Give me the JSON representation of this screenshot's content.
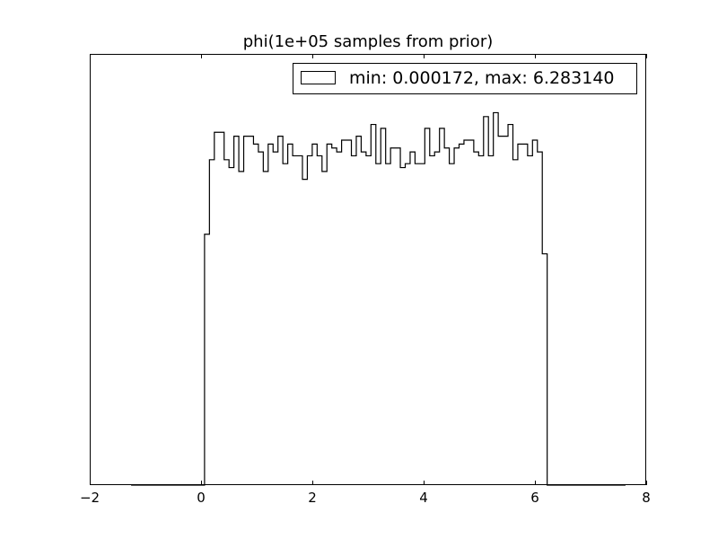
{
  "chart_data": {
    "type": "histogram",
    "title": "phi(1e+05 samples from prior)",
    "xlabel": "",
    "ylabel": "",
    "xlim": [
      -2,
      8
    ],
    "ylim": [
      0,
      1.1
    ],
    "x_ticks": [
      -2,
      0,
      2,
      4,
      6,
      8
    ],
    "x_tick_labels": [
      "−2",
      "0",
      "2",
      "4",
      "6",
      "8"
    ],
    "y_ticks_shown": false,
    "grid": false,
    "histtype": "step",
    "line_color": "#000000",
    "legend": {
      "placement": "top-right",
      "entries": [
        {
          "label": "min: 0.000172, max: 6.283140",
          "swatch": "open-box"
        }
      ]
    },
    "bins": {
      "start": -1.256542,
      "width": 0.087965,
      "counts_relative": [
        0,
        0,
        0,
        0,
        0,
        0,
        0,
        0,
        0,
        0,
        0,
        0,
        0,
        0,
        0,
        0.64,
        0.83,
        0.9,
        0.9,
        0.83,
        0.81,
        0.89,
        0.8,
        0.89,
        0.89,
        0.87,
        0.85,
        0.8,
        0.87,
        0.85,
        0.89,
        0.82,
        0.87,
        0.84,
        0.84,
        0.78,
        0.84,
        0.87,
        0.84,
        0.8,
        0.87,
        0.86,
        0.85,
        0.88,
        0.88,
        0.84,
        0.89,
        0.85,
        0.84,
        0.92,
        0.82,
        0.91,
        0.82,
        0.86,
        0.86,
        0.81,
        0.82,
        0.85,
        0.82,
        0.82,
        0.91,
        0.84,
        0.85,
        0.91,
        0.86,
        0.82,
        0.86,
        0.87,
        0.88,
        0.88,
        0.85,
        0.84,
        0.94,
        0.84,
        0.95,
        0.89,
        0.89,
        0.92,
        0.83,
        0.87,
        0.87,
        0.84,
        0.88,
        0.85,
        0.59,
        0,
        0,
        0,
        0,
        0,
        0,
        0,
        0,
        0,
        0,
        0,
        0,
        0,
        0,
        0,
        0
      ]
    }
  }
}
